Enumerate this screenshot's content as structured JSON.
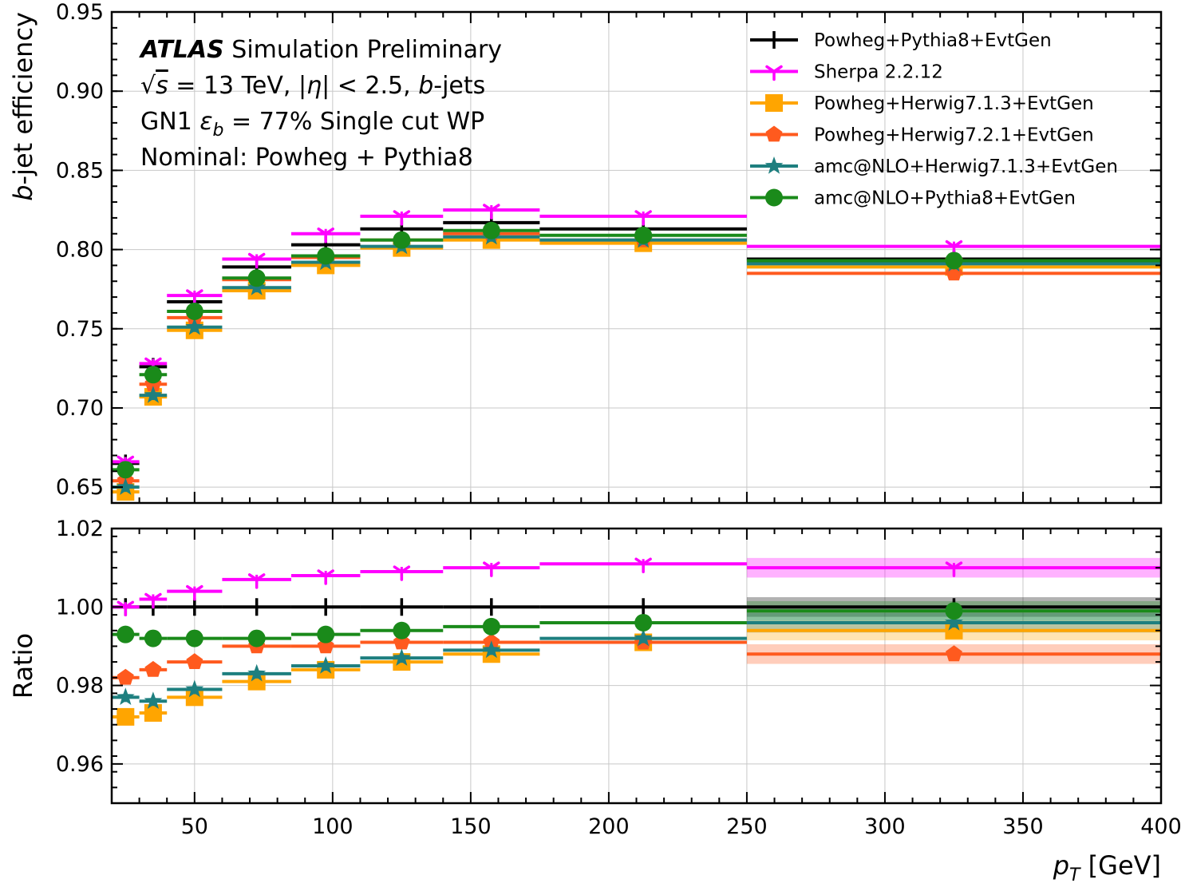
{
  "chart_data": {
    "type": "line",
    "x_edges": [
      20,
      30,
      40,
      60,
      85,
      110,
      140,
      175,
      250,
      400
    ],
    "xlim": [
      20,
      400
    ],
    "xticks": [
      50,
      100,
      150,
      200,
      250,
      300,
      350,
      400
    ],
    "xlabel": {
      "prefix": "p",
      "sub": "T",
      "suffix": " [GeV]"
    },
    "top": {
      "ylabel": {
        "italic": "b",
        "rest": "-jet efficiency"
      },
      "ylim": [
        0.64,
        0.95
      ],
      "yticks": [
        0.65,
        0.7,
        0.75,
        0.8,
        0.85,
        0.9,
        0.95
      ],
      "ytick_labels": [
        "0.65",
        "0.70",
        "0.75",
        "0.80",
        "0.85",
        "0.90",
        "0.95"
      ]
    },
    "bottom": {
      "ylabel": "Ratio",
      "ylim": [
        0.95,
        1.02
      ],
      "yticks": [
        0.96,
        0.98,
        1.0,
        1.02
      ],
      "ytick_labels": [
        "0.96",
        "0.98",
        "1.00",
        "1.02"
      ]
    },
    "grid": true,
    "legend_position": "top-right",
    "annotations": {
      "atlas": "ATLAS",
      "atlas_rest": " Simulation Preliminary",
      "line2": {
        "sqrt": "√",
        "s": "s",
        "eq": " = 13 TeV, |",
        "eta": "η",
        "cut": "| < 2.5, ",
        "b": "b",
        "end": "-jets"
      },
      "line3": {
        "pre": "GN1 ",
        "eps": "ε",
        "sub": "b",
        "post": " = 77% Single cut WP"
      },
      "line4": "Nominal: Powheg + Pythia8"
    },
    "series": [
      {
        "name": "Powheg+Pythia8+EvtGen",
        "color": "#000000",
        "marker": "plus",
        "values": [
          0.665,
          0.726,
          0.767,
          0.789,
          0.803,
          0.813,
          0.817,
          0.813,
          0.794
        ],
        "ratio": [
          1.0,
          1.0,
          1.0,
          1.0,
          1.0,
          1.0,
          1.0,
          1.0,
          1.0
        ]
      },
      {
        "name": "Sherpa 2.2.12",
        "color": "#ff00ff",
        "marker": "tri",
        "values": [
          0.666,
          0.728,
          0.771,
          0.794,
          0.81,
          0.821,
          0.825,
          0.821,
          0.802
        ],
        "ratio": [
          1.0,
          1.002,
          1.004,
          1.007,
          1.008,
          1.009,
          1.01,
          1.011,
          1.01
        ]
      },
      {
        "name": "Powheg+Herwig7.1.3+EvtGen",
        "color": "#ffa500",
        "marker": "square",
        "values": [
          0.647,
          0.707,
          0.749,
          0.774,
          0.79,
          0.801,
          0.806,
          0.804,
          0.789
        ],
        "ratio": [
          0.972,
          0.973,
          0.977,
          0.981,
          0.984,
          0.986,
          0.988,
          0.991,
          0.994
        ]
      },
      {
        "name": "Powheg+Herwig7.2.1+EvtGen",
        "color": "#ff5a1e",
        "marker": "pentagon",
        "values": [
          0.654,
          0.715,
          0.757,
          0.781,
          0.795,
          0.806,
          0.81,
          0.806,
          0.785
        ],
        "ratio": [
          0.982,
          0.984,
          0.986,
          0.99,
          0.99,
          0.991,
          0.991,
          0.991,
          0.988
        ]
      },
      {
        "name": "amc@NLO+Herwig7.1.3+EvtGen",
        "color": "#1e7f7f",
        "marker": "star",
        "values": [
          0.65,
          0.708,
          0.751,
          0.776,
          0.792,
          0.802,
          0.808,
          0.806,
          0.791
        ],
        "ratio": [
          0.977,
          0.976,
          0.979,
          0.983,
          0.985,
          0.987,
          0.989,
          0.992,
          0.996
        ]
      },
      {
        "name": "amc@NLO+Pythia8+EvtGen",
        "color": "#1a8a1a",
        "marker": "circle",
        "values": [
          0.661,
          0.721,
          0.761,
          0.782,
          0.796,
          0.806,
          0.812,
          0.809,
          0.793
        ],
        "ratio": [
          0.993,
          0.992,
          0.992,
          0.992,
          0.993,
          0.994,
          0.995,
          0.996,
          0.999
        ]
      }
    ]
  }
}
